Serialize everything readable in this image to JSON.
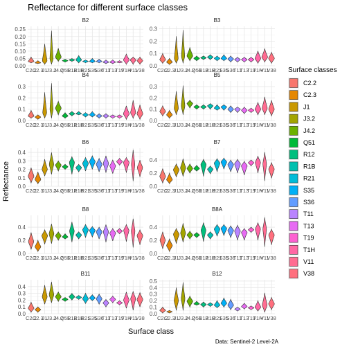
{
  "chart_data": {
    "type": "violin",
    "title": "Reflectance for different surface classes",
    "xlabel": "Surface class",
    "ylabel": "Reflectance",
    "caption": "Data: Sentinel-2 Level-2A",
    "legend_title": "Surface classes",
    "legend_position": "right",
    "grid": true,
    "classes": [
      "C2.2",
      "C2.3",
      "J1",
      "J3.2",
      "J4.2",
      "Q51",
      "R12",
      "R1B",
      "R21",
      "S35",
      "S36",
      "T11",
      "T13",
      "T19",
      "T1H",
      "V11",
      "V38"
    ],
    "class_colors": [
      "#F8766D",
      "#E58700",
      "#C99800",
      "#A3A500",
      "#6BB100",
      "#00BA38",
      "#00BF7D",
      "#00C0AF",
      "#00BCD8",
      "#00B0F6",
      "#619CFF",
      "#B983FF",
      "#E76BF3",
      "#FD61D1",
      "#FF67A4",
      "#FF6C91",
      "#FF6F7E"
    ],
    "panels": [
      {
        "band": "B2",
        "ylim": [
          0,
          0.27
        ],
        "yticks": [
          0,
          0.05,
          0.1,
          0.15,
          0.2,
          0.25
        ],
        "ytick_labels": [
          "0.00",
          "0.05",
          "0.10",
          "0.15",
          "0.20",
          "0.25"
        ],
        "series": [
          [
            0.03,
            0.02,
            0.06
          ],
          [
            0.02,
            0.015,
            0.035
          ],
          [
            0.035,
            0.01,
            0.15
          ],
          [
            0.05,
            0.01,
            0.24
          ],
          [
            0.06,
            0.03,
            0.12
          ],
          [
            0.035,
            0.025,
            0.045
          ],
          [
            0.04,
            0.03,
            0.05
          ],
          [
            0.04,
            0.02,
            0.07
          ],
          [
            0.03,
            0.02,
            0.04
          ],
          [
            0.03,
            0.02,
            0.05
          ],
          [
            0.03,
            0.02,
            0.045
          ],
          [
            0.025,
            0.015,
            0.04
          ],
          [
            0.025,
            0.015,
            0.04
          ],
          [
            0.025,
            0.02,
            0.035
          ],
          [
            0.04,
            0.01,
            0.08
          ],
          [
            0.04,
            0.01,
            0.06
          ],
          [
            0.035,
            0.01,
            0.06
          ]
        ]
      },
      {
        "band": "B3",
        "ylim": [
          0,
          0.32
        ],
        "yticks": [
          0,
          0.1,
          0.2,
          0.3
        ],
        "ytick_labels": [
          "0.0",
          "0.1",
          "0.2",
          "0.3"
        ],
        "series": [
          [
            0.05,
            0.02,
            0.1
          ],
          [
            0.03,
            0.01,
            0.06
          ],
          [
            0.06,
            0.02,
            0.24
          ],
          [
            0.08,
            0.02,
            0.29
          ],
          [
            0.08,
            0.04,
            0.15
          ],
          [
            0.06,
            0.04,
            0.08
          ],
          [
            0.065,
            0.05,
            0.08
          ],
          [
            0.07,
            0.05,
            0.09
          ],
          [
            0.06,
            0.04,
            0.08
          ],
          [
            0.06,
            0.04,
            0.09
          ],
          [
            0.055,
            0.03,
            0.08
          ],
          [
            0.05,
            0.03,
            0.07
          ],
          [
            0.05,
            0.03,
            0.07
          ],
          [
            0.05,
            0.03,
            0.07
          ],
          [
            0.06,
            0.02,
            0.12
          ],
          [
            0.07,
            0.03,
            0.14
          ],
          [
            0.06,
            0.02,
            0.11
          ]
        ]
      },
      {
        "band": "B4",
        "ylim": [
          0,
          0.35
        ],
        "yticks": [
          0,
          0.1,
          0.2,
          0.3
        ],
        "ytick_labels": [
          "0.0",
          "0.1",
          "0.2",
          "0.3"
        ],
        "series": [
          [
            0.04,
            0.02,
            0.09
          ],
          [
            0.03,
            0.01,
            0.05
          ],
          [
            0.07,
            0.02,
            0.25
          ],
          [
            0.1,
            0.02,
            0.33
          ],
          [
            0.11,
            0.05,
            0.17
          ],
          [
            0.04,
            0.02,
            0.07
          ],
          [
            0.06,
            0.04,
            0.08
          ],
          [
            0.06,
            0.05,
            0.08
          ],
          [
            0.05,
            0.03,
            0.07
          ],
          [
            0.05,
            0.03,
            0.08
          ],
          [
            0.04,
            0.02,
            0.06
          ],
          [
            0.04,
            0.02,
            0.06
          ],
          [
            0.035,
            0.02,
            0.05
          ],
          [
            0.035,
            0.02,
            0.05
          ],
          [
            0.06,
            0.01,
            0.13
          ],
          [
            0.07,
            0.02,
            0.18
          ],
          [
            0.06,
            0.01,
            0.14
          ]
        ]
      },
      {
        "band": "B5",
        "ylim": [
          0,
          0.35
        ],
        "yticks": [
          0,
          0.1,
          0.2,
          0.3
        ],
        "ytick_labels": [
          "0.0",
          "0.1",
          "0.2",
          "0.3"
        ],
        "series": [
          [
            0.08,
            0.04,
            0.13
          ],
          [
            0.05,
            0.02,
            0.09
          ],
          [
            0.11,
            0.05,
            0.26
          ],
          [
            0.13,
            0.05,
            0.31
          ],
          [
            0.15,
            0.11,
            0.18
          ],
          [
            0.12,
            0.1,
            0.14
          ],
          [
            0.12,
            0.1,
            0.14
          ],
          [
            0.13,
            0.1,
            0.15
          ],
          [
            0.11,
            0.09,
            0.14
          ],
          [
            0.12,
            0.09,
            0.14
          ],
          [
            0.1,
            0.07,
            0.13
          ],
          [
            0.1,
            0.07,
            0.12
          ],
          [
            0.09,
            0.06,
            0.12
          ],
          [
            0.09,
            0.07,
            0.11
          ],
          [
            0.1,
            0.05,
            0.16
          ],
          [
            0.11,
            0.05,
            0.21
          ],
          [
            0.1,
            0.04,
            0.18
          ]
        ]
      },
      {
        "band": "B6",
        "ylim": [
          0,
          0.45
        ],
        "yticks": [
          0,
          0.1,
          0.2,
          0.3,
          0.4
        ],
        "ytick_labels": [
          "0.0",
          "0.1",
          "0.2",
          "0.3",
          "0.4"
        ],
        "series": [
          [
            0.12,
            0.04,
            0.22
          ],
          [
            0.08,
            0.03,
            0.17
          ],
          [
            0.2,
            0.12,
            0.32
          ],
          [
            0.26,
            0.14,
            0.4
          ],
          [
            0.25,
            0.18,
            0.3
          ],
          [
            0.23,
            0.2,
            0.26
          ],
          [
            0.28,
            0.14,
            0.35
          ],
          [
            0.22,
            0.17,
            0.26
          ],
          [
            0.27,
            0.18,
            0.34
          ],
          [
            0.29,
            0.2,
            0.36
          ],
          [
            0.26,
            0.17,
            0.33
          ],
          [
            0.27,
            0.16,
            0.36
          ],
          [
            0.24,
            0.15,
            0.31
          ],
          [
            0.29,
            0.25,
            0.33
          ],
          [
            0.28,
            0.16,
            0.34
          ],
          [
            0.26,
            0.06,
            0.43
          ],
          [
            0.22,
            0.11,
            0.31
          ]
        ]
      },
      {
        "band": "B7",
        "ylim": [
          0,
          0.58
        ],
        "yticks": [
          0,
          0.2,
          0.4
        ],
        "ytick_labels": [
          "0.0",
          "0.2",
          "0.4"
        ],
        "series": [
          [
            0.15,
            0.05,
            0.27
          ],
          [
            0.1,
            0.04,
            0.2
          ],
          [
            0.25,
            0.14,
            0.34
          ],
          [
            0.28,
            0.15,
            0.42
          ],
          [
            0.27,
            0.2,
            0.34
          ],
          [
            0.27,
            0.23,
            0.32
          ],
          [
            0.33,
            0.15,
            0.41
          ],
          [
            0.26,
            0.19,
            0.31
          ],
          [
            0.35,
            0.22,
            0.42
          ],
          [
            0.37,
            0.26,
            0.43
          ],
          [
            0.33,
            0.22,
            0.4
          ],
          [
            0.34,
            0.2,
            0.41
          ],
          [
            0.31,
            0.17,
            0.38
          ],
          [
            0.36,
            0.31,
            0.4
          ],
          [
            0.36,
            0.2,
            0.46
          ],
          [
            0.34,
            0.08,
            0.52
          ],
          [
            0.26,
            0.12,
            0.36
          ]
        ]
      },
      {
        "band": "B8",
        "ylim": [
          0,
          0.58
        ],
        "yticks": [
          0,
          0.2,
          0.4
        ],
        "ytick_labels": [
          "0.0",
          "0.2",
          "0.4"
        ],
        "series": [
          [
            0.18,
            0.06,
            0.32
          ],
          [
            0.1,
            0.03,
            0.2
          ],
          [
            0.27,
            0.14,
            0.36
          ],
          [
            0.3,
            0.15,
            0.45
          ],
          [
            0.27,
            0.2,
            0.33
          ],
          [
            0.25,
            0.22,
            0.3
          ],
          [
            0.34,
            0.17,
            0.48
          ],
          [
            0.28,
            0.22,
            0.33
          ],
          [
            0.36,
            0.24,
            0.44
          ],
          [
            0.35,
            0.25,
            0.41
          ],
          [
            0.33,
            0.22,
            0.4
          ],
          [
            0.33,
            0.17,
            0.44
          ],
          [
            0.31,
            0.19,
            0.38
          ],
          [
            0.34,
            0.3,
            0.38
          ],
          [
            0.35,
            0.18,
            0.44
          ],
          [
            0.34,
            0.09,
            0.53
          ],
          [
            0.27,
            0.13,
            0.36
          ]
        ]
      },
      {
        "band": "B8A",
        "ylim": [
          0,
          0.58
        ],
        "yticks": [
          0,
          0.2,
          0.4
        ],
        "ytick_labels": [
          "0.0",
          "0.2",
          "0.4"
        ],
        "series": [
          [
            0.2,
            0.07,
            0.33
          ],
          [
            0.12,
            0.03,
            0.22
          ],
          [
            0.29,
            0.15,
            0.38
          ],
          [
            0.31,
            0.17,
            0.46
          ],
          [
            0.28,
            0.22,
            0.34
          ],
          [
            0.28,
            0.24,
            0.32
          ],
          [
            0.35,
            0.18,
            0.47
          ],
          [
            0.28,
            0.22,
            0.33
          ],
          [
            0.37,
            0.26,
            0.44
          ],
          [
            0.38,
            0.27,
            0.44
          ],
          [
            0.35,
            0.24,
            0.42
          ],
          [
            0.34,
            0.2,
            0.43
          ],
          [
            0.32,
            0.2,
            0.38
          ],
          [
            0.36,
            0.32,
            0.4
          ],
          [
            0.37,
            0.2,
            0.47
          ],
          [
            0.37,
            0.1,
            0.55
          ],
          [
            0.28,
            0.13,
            0.37
          ]
        ]
      },
      {
        "band": "B11",
        "ylim": [
          0,
          0.5
        ],
        "yticks": [
          0,
          0.1,
          0.2,
          0.3,
          0.4
        ],
        "ytick_labels": [
          "0.0",
          "0.1",
          "0.2",
          "0.3",
          "0.4"
        ],
        "series": [
          [
            0.08,
            0.02,
            0.17
          ],
          [
            0.06,
            0.02,
            0.1
          ],
          [
            0.25,
            0.14,
            0.42
          ],
          [
            0.28,
            0.16,
            0.47
          ],
          [
            0.25,
            0.18,
            0.32
          ],
          [
            0.21,
            0.18,
            0.24
          ],
          [
            0.25,
            0.2,
            0.3
          ],
          [
            0.24,
            0.21,
            0.27
          ],
          [
            0.22,
            0.15,
            0.3
          ],
          [
            0.23,
            0.19,
            0.28
          ],
          [
            0.22,
            0.14,
            0.29
          ],
          [
            0.16,
            0.1,
            0.21
          ],
          [
            0.21,
            0.16,
            0.26
          ],
          [
            0.16,
            0.13,
            0.19
          ],
          [
            0.2,
            0.08,
            0.32
          ],
          [
            0.22,
            0.05,
            0.33
          ],
          [
            0.21,
            0.1,
            0.31
          ]
        ]
      },
      {
        "band": "B12",
        "ylim": [
          0,
          0.52
        ],
        "yticks": [
          0,
          0.1,
          0.2,
          0.3,
          0.4,
          0.5
        ],
        "ytick_labels": [
          "0.0",
          "0.1",
          "0.2",
          "0.3",
          "0.4",
          "0.5"
        ],
        "series": [
          [
            0.05,
            0.01,
            0.1
          ],
          [
            0.03,
            0.01,
            0.05
          ],
          [
            0.2,
            0.05,
            0.4
          ],
          [
            0.23,
            0.05,
            0.48
          ],
          [
            0.19,
            0.1,
            0.27
          ],
          [
            0.15,
            0.13,
            0.19
          ],
          [
            0.14,
            0.1,
            0.18
          ],
          [
            0.14,
            0.11,
            0.17
          ],
          [
            0.13,
            0.09,
            0.2
          ],
          [
            0.16,
            0.1,
            0.24
          ],
          [
            0.13,
            0.06,
            0.22
          ],
          [
            0.07,
            0.04,
            0.1
          ],
          [
            0.11,
            0.07,
            0.16
          ],
          [
            0.09,
            0.06,
            0.12
          ],
          [
            0.1,
            0.04,
            0.2
          ],
          [
            0.13,
            0.02,
            0.32
          ],
          [
            0.15,
            0.06,
            0.25
          ]
        ]
      }
    ]
  }
}
